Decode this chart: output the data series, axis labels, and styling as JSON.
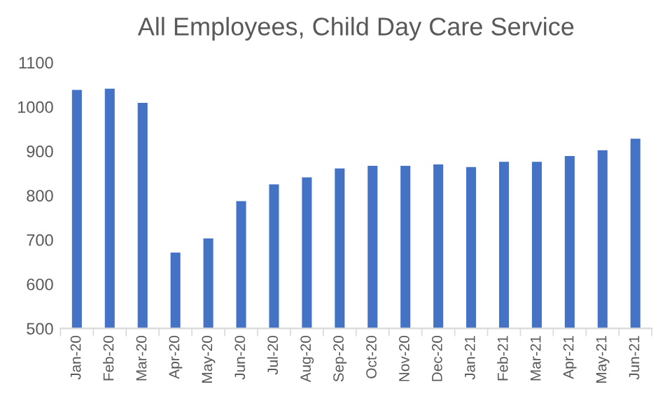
{
  "chart_data": {
    "type": "bar",
    "title": "All Employees, Child Day Care Service",
    "categories": [
      "Jan-20",
      "Feb-20",
      "Mar-20",
      "Apr-20",
      "May-20",
      "Jun-20",
      "Jul-20",
      "Aug-20",
      "Sep-20",
      "Oct-20",
      "Nov-20",
      "Dec-20",
      "Jan-21",
      "Feb-21",
      "Mar-21",
      "Apr-21",
      "May-21",
      "Jun-21"
    ],
    "values": [
      1038,
      1041,
      1009,
      671,
      703,
      787,
      825,
      841,
      861,
      867,
      867,
      870,
      864,
      876,
      876,
      889,
      902,
      928
    ],
    "color": "#4472c4",
    "ylim": [
      500,
      1100
    ],
    "yticks": [
      500,
      600,
      700,
      800,
      900,
      1000,
      1100
    ],
    "grid": false
  }
}
